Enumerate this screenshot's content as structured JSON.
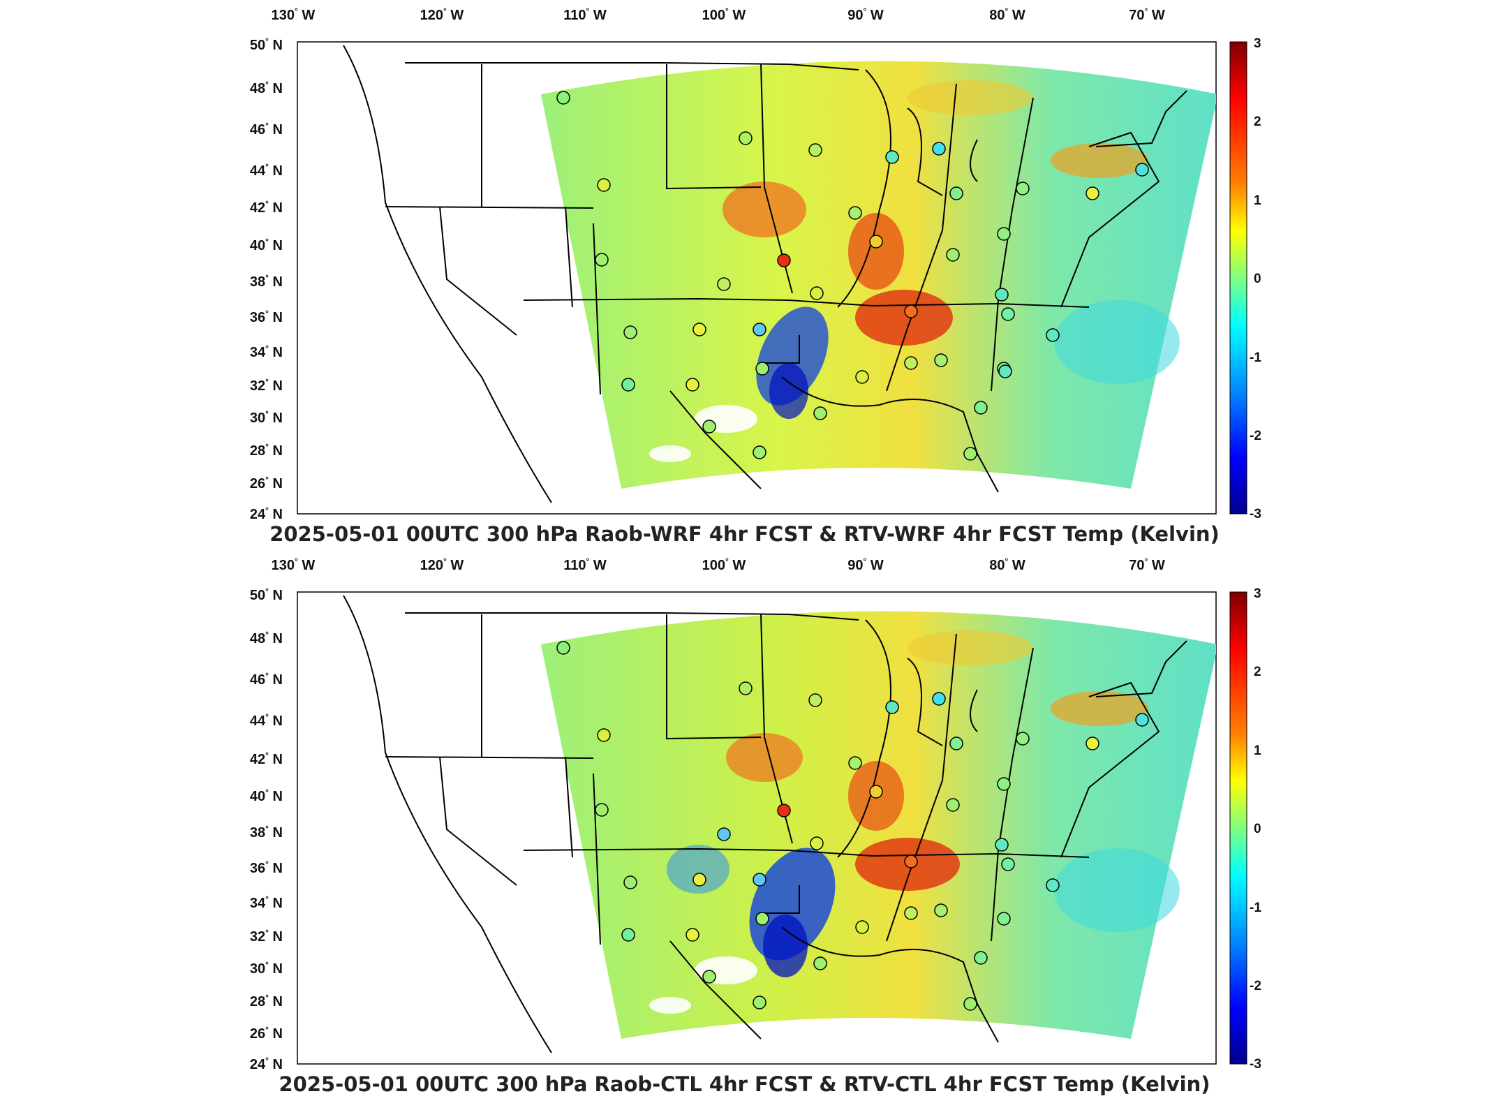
{
  "panels": [
    {
      "title": "2025-05-01 00UTC 300 hPa Raob-WRF 4hr FCST & RTV-WRF 4hr FCST Temp (Kelvin)"
    },
    {
      "title": "2025-05-01 00UTC 300 hPa Raob-CTL 4hr FCST & RTV-CTL 4hr FCST Temp (Kelvin)"
    }
  ],
  "axes": {
    "lon_ticks": [
      "130",
      "120",
      "110",
      "100",
      "90",
      "80",
      "70"
    ],
    "lon_suffix": "W",
    "lat_ticks": [
      "50",
      "48",
      "46",
      "44",
      "42",
      "40",
      "38",
      "36",
      "34",
      "32",
      "30",
      "28",
      "26",
      "24"
    ],
    "lat_suffix": "N",
    "degree_symbol": "°"
  },
  "colorbar": {
    "ticks": [
      "3",
      "2",
      "1",
      "0",
      "-1",
      "-2",
      "-3"
    ],
    "colormap": "jet",
    "colors": [
      "#7f0000",
      "#ff0000",
      "#ff8000",
      "#ffff00",
      "#80ff80",
      "#00ffff",
      "#0080ff",
      "#0000ff",
      "#00008f"
    ]
  },
  "map": {
    "projection": "Lambert conformal (CONUS)",
    "lon_range_deg": [
      -130,
      -65
    ],
    "lat_range_deg": [
      24,
      50
    ],
    "state_boundary_color": "#000000",
    "missing_data_color": "#ffffff"
  }
}
